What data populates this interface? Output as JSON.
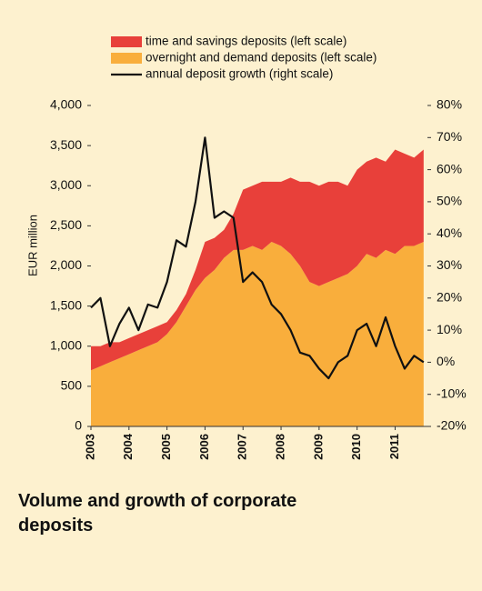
{
  "chart_data": {
    "type": "stacked_area_line",
    "title": "Volume and growth of corporate deposits",
    "y_label": "EUR million",
    "x": [
      2003,
      2003.25,
      2003.5,
      2003.75,
      2004,
      2004.25,
      2004.5,
      2004.75,
      2005,
      2005.25,
      2005.5,
      2005.75,
      2006,
      2006.25,
      2006.5,
      2006.75,
      2007,
      2007.25,
      2007.5,
      2007.75,
      2008,
      2008.25,
      2008.5,
      2008.75,
      2009,
      2009.25,
      2009.5,
      2009.75,
      2010,
      2010.25,
      2010.5,
      2010.75,
      2011,
      2011.25,
      2011.5,
      2011.75
    ],
    "xlim": [
      2003,
      2011.85
    ],
    "xticks": [
      2003,
      2004,
      2005,
      2006,
      2007,
      2008,
      2009,
      2010,
      2011
    ],
    "ylim": [
      0,
      4000
    ],
    "yticks": [
      0,
      500,
      {
        "value": 1000,
        "label": "1,000"
      },
      {
        "value": 1500,
        "label": "1,500"
      },
      {
        "value": 2000,
        "label": "2,000"
      },
      {
        "value": 2500,
        "label": "2,500"
      },
      {
        "value": 3000,
        "label": "3,000"
      },
      {
        "value": 3500,
        "label": "3,500"
      },
      {
        "value": 4000,
        "label": "4,000"
      }
    ],
    "y2lim": [
      -20,
      80
    ],
    "y2ticks": [
      {
        "value": -20,
        "label": "-20%"
      },
      {
        "value": -10,
        "label": "-10%"
      },
      {
        "value": 0,
        "label": "0%"
      },
      {
        "value": 10,
        "label": "10%"
      },
      {
        "value": 20,
        "label": "20%"
      },
      {
        "value": 30,
        "label": "30%"
      },
      {
        "value": 40,
        "label": "40%"
      },
      {
        "value": 50,
        "label": "50%"
      },
      {
        "value": 60,
        "label": "60%"
      },
      {
        "value": 70,
        "label": "70%"
      },
      {
        "value": 80,
        "label": "80%"
      }
    ],
    "grid": false,
    "series": [
      {
        "name": "time and savings deposits (left scale)",
        "color": "#e8403a",
        "kind": "area",
        "values": [
          300,
          250,
          250,
          200,
          200,
          200,
          200,
          200,
          150,
          150,
          150,
          250,
          450,
          400,
          350,
          450,
          750,
          750,
          850,
          750,
          800,
          950,
          1050,
          1250,
          1250,
          1250,
          1200,
          1100,
          1200,
          1150,
          1250,
          1100,
          1300,
          1150,
          1100,
          1150
        ]
      },
      {
        "name": "overnight and demand deposits (left scale)",
        "color": "#f9ae3c",
        "kind": "area",
        "values": [
          700,
          750,
          800,
          850,
          900,
          950,
          1000,
          1050,
          1150,
          1300,
          1500,
          1700,
          1850,
          1950,
          2100,
          2200,
          2200,
          2250,
          2200,
          2300,
          2250,
          2150,
          2000,
          1800,
          1750,
          1800,
          1850,
          1900,
          2000,
          2150,
          2100,
          2200,
          2150,
          2250,
          2250,
          2300
        ]
      },
      {
        "name": "annual deposit growth (right scale)",
        "color": "#111111",
        "kind": "line",
        "axis": "y2",
        "values": [
          17,
          20,
          5,
          12,
          17,
          10,
          18,
          17,
          25,
          38,
          36,
          50,
          70,
          45,
          47,
          45,
          25,
          28,
          25,
          18,
          15,
          10,
          3,
          2,
          -2,
          -5,
          0,
          2,
          10,
          12,
          5,
          14,
          5,
          -2,
          2,
          0
        ]
      }
    ]
  }
}
